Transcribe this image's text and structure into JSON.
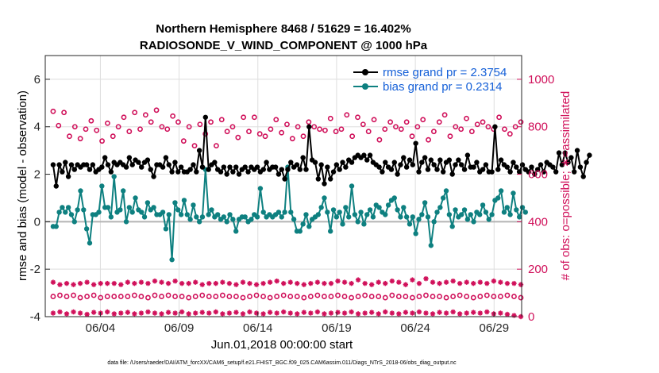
{
  "chart_data": {
    "type": "line",
    "title": "Northern Hemisphere 8468 / 51629 = 16.402%",
    "subtitle": "RADIOSONDE_V_WIND_COMPONENT @ 1000 hPa",
    "xlabel": "Jun.01,2018 00:00:00 start",
    "ylabel": "rmse and bias (model - observation)",
    "y2label": "# of obs: o=possible; ∗=assimilated",
    "footnote": "data file: /Users/raeder/DAI/ATM_forcXX/CAM6_setup/f.e21.FHIST_BGC.f09_025.CAM6assim.011/Diags_NTrS_2018-06/obs_diag_output.nc",
    "xlim": [
      0.5,
      30.75
    ],
    "ylim": [
      -4,
      7
    ],
    "y2lim": [
      0,
      1100
    ],
    "xticks": [
      4,
      9,
      14,
      19,
      24,
      29
    ],
    "xticklabels": [
      "06/04",
      "06/09",
      "06/14",
      "06/19",
      "06/24",
      "06/29"
    ],
    "yticks": [
      -4,
      -2,
      0,
      2,
      4,
      6
    ],
    "y2ticks": [
      0,
      200,
      400,
      600,
      800,
      1000
    ],
    "grid": true,
    "legend_position": "top-right",
    "colors": {
      "rmse": "#000000",
      "bias": "#0e8080",
      "counts": "#d0105a",
      "zero": "#b4b4b4",
      "legend_text": "#1560d8"
    },
    "series": [
      {
        "name": "rmse grand pr = 2.3754",
        "values": [
          2.4,
          1.5,
          2.4,
          2.1,
          2.5,
          1.9,
          2.4,
          2.2,
          2.4,
          2.3,
          2.4,
          2.4,
          2.2,
          2.4,
          2.1,
          2.2,
          2.3,
          2.7,
          2.4,
          2.1,
          2.5,
          2.4,
          2.5,
          2.4,
          2.3,
          2.7,
          2.4,
          2.6,
          2.5,
          2.3,
          2.5,
          2.6,
          2.2,
          1.9,
          2.4,
          2.4,
          2.3,
          2.7,
          2.4,
          2.1,
          2.5,
          2.1,
          2.3,
          2.1,
          2.1,
          2.2,
          2.4,
          2.1,
          3.0,
          2.3,
          4.4,
          2.2,
          2.4,
          2.5,
          2.2,
          2.1,
          2.3,
          2.0,
          2.3,
          2.1,
          2.3,
          2.0,
          2.2,
          2.3,
          2.1,
          2.3,
          2.2,
          2.3,
          2.1,
          2.2,
          2.5,
          2.2,
          2.3,
          2.3,
          2.0,
          2.2,
          1.8,
          2.2,
          2.5,
          2.3,
          2.4,
          2.2,
          2.7,
          2.2,
          4.0,
          2.6,
          2.5,
          1.8,
          2.4,
          1.6,
          2.3,
          1.8,
          2.1,
          2.4,
          2.2,
          2.5,
          2.3,
          2.6,
          2.5,
          2.7,
          2.8,
          2.7,
          2.8,
          2.6,
          2.8,
          2.5,
          2.4,
          2.3,
          2.1,
          2.5,
          2.3,
          2.2,
          2.5,
          2.0,
          2.4,
          2.7,
          2.3,
          2.6,
          2.4,
          3.3,
          2.1,
          2.5,
          2.7,
          2.2,
          2.6,
          2.4,
          2.2,
          2.6,
          2.1,
          2.5,
          2.6,
          2.0,
          2.4,
          2.6,
          2.4,
          2.2,
          2.8,
          2.3,
          2.3,
          2.5,
          2.1,
          2.2,
          2.4,
          2.1,
          2.1,
          4.0,
          2.2,
          2.6,
          2.4,
          2.3,
          2.1,
          2.5,
          2.3,
          2.1,
          2.4,
          2.2,
          2.1,
          2.3,
          2.0,
          2.2,
          2.4,
          2.1,
          2.5,
          2.4,
          2.3,
          2.1,
          2.9,
          2.4,
          2.9,
          2.5,
          2.7,
          2.1,
          3.0,
          2.3,
          1.9,
          2.5,
          2.8
        ]
      },
      {
        "name": "bias grand pr = 0.2314",
        "values": [
          -0.2,
          -0.2,
          0.4,
          0.6,
          0.4,
          0.6,
          0.3,
          0.0,
          0.5,
          1.3,
          0.5,
          -0.3,
          -0.9,
          0.3,
          0.3,
          0.4,
          1.5,
          0.6,
          0.6,
          0.2,
          1.9,
          0.4,
          0.5,
          1.3,
          0.0,
          0.6,
          0.4,
          1.0,
          0.5,
          0.4,
          0.2,
          0.8,
          0.5,
          0.6,
          0.3,
          0.3,
          0.4,
          -0.3,
          0.3,
          -1.6,
          0.8,
          0.5,
          0.3,
          0.9,
          0.3,
          0.1,
          0.7,
          0.2,
          0.0,
          0.2,
          2.2,
          0.3,
          0.5,
          0.2,
          0.3,
          0.1,
          0.2,
          0.0,
          0.3,
          0.1,
          -0.4,
          0.1,
          0.2,
          0.2,
          0.0,
          0.1,
          0.3,
          0.2,
          1.4,
          0.4,
          0.2,
          0.3,
          0.2,
          0.3,
          0.4,
          0.2,
          0.4,
          2.3,
          0.4,
          0.1,
          -0.4,
          -0.4,
          -0.1,
          0.3,
          -0.2,
          0.1,
          0.2,
          0.3,
          0.6,
          1.0,
          0.4,
          -0.4,
          0.5,
          0.2,
          0.4,
          -0.1,
          0.6,
          0.2,
          1.5,
          0.3,
          0.0,
          0.4,
          -0.1,
          0.3,
          0.5,
          0.2,
          0.7,
          0.6,
          0.4,
          0.3,
          0.7,
          0.9,
          1.0,
          0.5,
          0.2,
          0.6,
          0.2,
          -0.1,
          0.2,
          -0.5,
          0.1,
          0.3,
          0.8,
          0.2,
          -1.0,
          0.0,
          0.4,
          0.6,
          1.0,
          1.3,
          0.3,
          -0.2,
          0.5,
          0.2,
          0.3,
          0.5,
          0.1,
          0.3,
          0.0,
          0.4,
          0.3,
          0.7,
          0.4,
          0.1,
          0.3,
          0.9,
          1.0,
          1.3,
          0.4,
          0.6,
          0.3,
          1.2,
          0.5,
          0.2,
          0.6,
          0.4
        ]
      },
      {
        "name": "# obs possible",
        "axis": "right",
        "marker": "o",
        "values": [
          865,
          805,
          860,
          760,
          800,
          750,
          790,
          825,
          785,
          740,
          815,
          760,
          800,
          840,
          780,
          860,
          790,
          850,
          820,
          870,
          800,
          790,
          845,
          820,
          740,
          800,
          720,
          810,
          770,
          820,
          720,
          830,
          780,
          800,
          755,
          840,
          780,
          840,
          770,
          760,
          790,
          830,
          775,
          810,
          750,
          800,
          760,
          820,
          800,
          790,
          785,
          835,
          780,
          790,
          850,
          760,
          840,
          810,
          780,
          830,
          745,
          790,
          820,
          800,
          790,
          820,
          760,
          800,
          830,
          745,
          780,
          820,
          850,
          760,
          800,
          790,
          835,
          780,
          810,
          820,
          800,
          790,
          840,
          790,
          770,
          800,
          820
        ]
      },
      {
        "name": "# obs possible (low)",
        "axis": "right",
        "marker": "o",
        "values": [
          85,
          90,
          85,
          90,
          80,
          85,
          90,
          80,
          85,
          85,
          85,
          85,
          90,
          85,
          80,
          90,
          85,
          90,
          85,
          85,
          80,
          85,
          90,
          85,
          85,
          90,
          85,
          85,
          80,
          85,
          90,
          85,
          80,
          85,
          90,
          85,
          85,
          80,
          85,
          90,
          85,
          85,
          90,
          85,
          80,
          85,
          90,
          85,
          85,
          80,
          90,
          85,
          85,
          80,
          85,
          90,
          85,
          85,
          80,
          85,
          90,
          85,
          80,
          85,
          90,
          85,
          85,
          90,
          85,
          80
        ]
      },
      {
        "name": "# obs assimilated",
        "axis": "right",
        "marker": "*",
        "values": [
          145,
          135,
          140,
          135,
          140,
          145,
          135,
          140,
          140,
          140,
          135,
          145,
          140,
          145,
          140,
          150,
          145,
          140,
          150,
          140,
          140,
          145,
          135,
          140,
          140,
          145,
          140,
          135,
          145,
          140,
          135,
          140,
          145,
          150,
          140,
          145,
          140,
          135,
          140,
          145,
          140,
          140,
          150,
          145,
          140,
          155,
          140,
          135,
          145,
          140,
          150,
          145,
          135,
          155,
          140,
          160,
          145,
          140,
          145,
          150,
          140,
          145,
          140,
          145,
          140,
          150,
          145,
          140,
          140,
          135
        ]
      },
      {
        "name": "# obs assimilated (low)",
        "axis": "right",
        "marker": "*",
        "values": [
          15,
          20,
          12,
          20,
          15,
          10,
          18,
          15,
          20,
          12,
          15,
          18,
          12,
          15,
          20,
          15,
          12,
          18,
          15,
          20,
          12,
          15,
          18,
          15,
          20,
          12,
          15,
          18,
          12,
          20,
          15,
          12,
          18,
          15,
          20,
          15,
          12,
          18,
          15,
          20,
          12,
          15,
          18,
          15,
          20,
          12,
          15,
          18,
          12,
          20,
          15,
          12,
          18,
          15,
          20,
          15,
          12,
          18,
          15,
          20,
          12,
          15,
          18,
          15,
          20,
          12,
          15,
          10,
          5,
          0
        ]
      }
    ]
  }
}
